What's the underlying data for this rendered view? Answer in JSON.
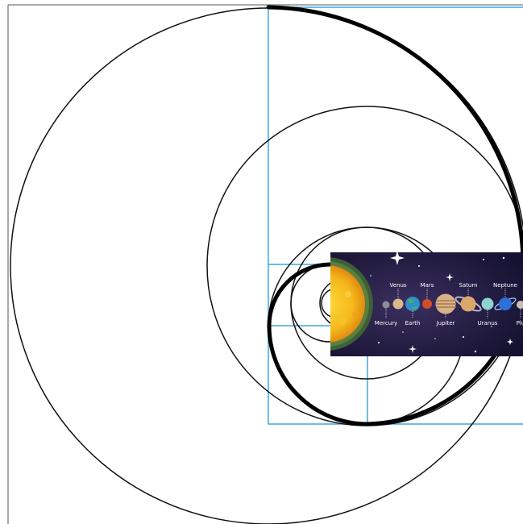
{
  "colors": {
    "background": "#ffffff",
    "golden_rect_stroke": "#3aa7dd",
    "circle_stroke": "#111111",
    "panel_bg": "#1c1838",
    "sun_core": "#f6c21b",
    "sun_edge": "#e08a12",
    "sun_ring": "#4b6a3a"
  },
  "solar_system": {
    "top_labels": [
      "Venus",
      "Mars",
      "Saturn",
      "Neptune"
    ],
    "bottom_labels": [
      "Mercury",
      "Earth",
      "Jupiter",
      "Uranus",
      "Plu"
    ]
  }
}
